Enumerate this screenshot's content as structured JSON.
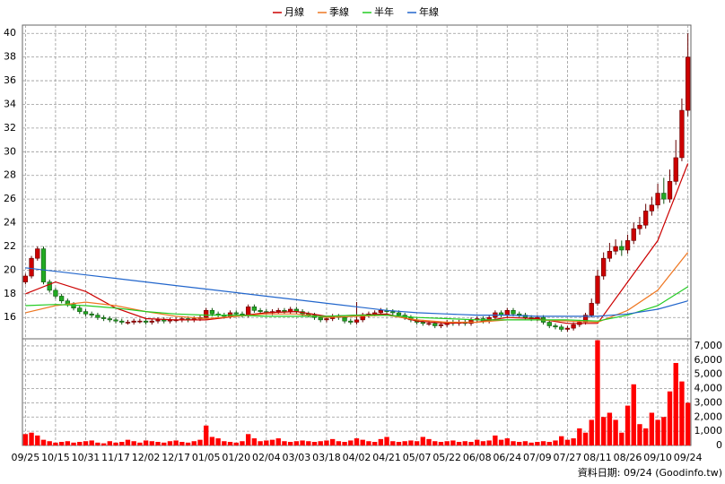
{
  "chart_data": [
    {
      "type": "candlestick",
      "categories": [
        "09/25",
        null,
        null,
        null,
        null,
        "10/15",
        null,
        null,
        null,
        null,
        "10/31",
        null,
        null,
        null,
        null,
        "11/17",
        null,
        null,
        null,
        null,
        "12/02",
        null,
        null,
        null,
        null,
        "12/17",
        null,
        null,
        null,
        null,
        "01/05",
        null,
        null,
        null,
        null,
        "01/20",
        null,
        null,
        null,
        null,
        "02/04",
        null,
        null,
        null,
        null,
        "03/03",
        null,
        null,
        null,
        null,
        "03/18",
        null,
        null,
        null,
        null,
        "04/02",
        null,
        null,
        null,
        null,
        "04/21",
        null,
        null,
        null,
        null,
        "05/07",
        null,
        null,
        null,
        null,
        "05/22",
        null,
        null,
        null,
        null,
        "06/08",
        null,
        null,
        null,
        null,
        "06/24",
        null,
        null,
        null,
        null,
        "07/09",
        null,
        null,
        null,
        null,
        "07/27",
        null,
        null,
        null,
        null,
        "08/11",
        null,
        null,
        null,
        null,
        "08/26",
        null,
        null,
        null,
        null,
        "09/10",
        null,
        null,
        null,
        null,
        "09/24"
      ],
      "open": [
        19.0,
        19.5,
        21,
        21.8,
        19,
        18.3,
        17.8,
        17.4,
        17.1,
        16.8,
        16.5,
        16.3,
        16.2,
        16.0,
        15.9,
        15.8,
        15.7,
        15.6,
        15.6,
        15.7,
        15.7,
        15.6,
        15.7,
        15.8,
        15.7,
        15.8,
        15.8,
        15.9,
        15.8,
        15.9,
        16.0,
        16.6,
        16.3,
        16.2,
        16.1,
        16.4,
        16.3,
        16.2,
        16.9,
        16.6,
        16.5,
        16.4,
        16.5,
        16.6,
        16.5,
        16.7,
        16.5,
        16.3,
        16.2,
        16.0,
        15.8,
        15.9,
        16.1,
        16.0,
        15.7,
        15.6,
        15.8,
        16.2,
        16.3,
        16.4,
        16.6,
        16.5,
        16.4,
        16.2,
        16.0,
        15.8,
        15.6,
        15.5,
        15.5,
        15.3,
        15.4,
        15.6,
        15.5,
        15.6,
        15.5,
        15.8,
        15.9,
        15.7,
        16.0,
        16.4,
        16.2,
        16.6,
        16.3,
        16.2,
        16.0,
        15.9,
        16.0,
        15.6,
        15.3,
        15.2,
        15.0,
        15.1,
        15.4,
        15.6,
        16.2,
        17.2,
        19.5,
        21.0,
        21.6,
        22.0,
        21.7,
        22.5,
        23.5,
        23.8,
        25.0,
        25.5,
        26.5,
        26.0,
        27.5,
        29.5,
        33.5
      ],
      "high": [
        19.7,
        21.2,
        22.0,
        22.0,
        19.2,
        18.5,
        18.0,
        17.6,
        17.3,
        17.0,
        16.7,
        16.5,
        16.4,
        16.2,
        16.1,
        16.0,
        15.9,
        15.8,
        15.9,
        15.9,
        15.9,
        15.9,
        16.0,
        16.0,
        16.0,
        16.0,
        16.1,
        16.1,
        16.1,
        16.2,
        16.8,
        16.8,
        16.5,
        16.4,
        16.6,
        16.6,
        16.5,
        17.1,
        17.1,
        16.8,
        16.7,
        16.7,
        16.8,
        16.8,
        16.9,
        16.9,
        16.7,
        16.5,
        16.4,
        16.2,
        16.1,
        16.3,
        16.3,
        16.2,
        15.9,
        17.3,
        16.4,
        16.5,
        16.6,
        16.8,
        16.8,
        16.7,
        16.6,
        16.4,
        16.2,
        16.0,
        15.8,
        15.7,
        15.7,
        15.6,
        15.8,
        15.8,
        15.8,
        15.8,
        16.0,
        16.1,
        16.1,
        16.2,
        16.6,
        16.6,
        16.8,
        16.8,
        16.5,
        16.4,
        16.2,
        16.2,
        16.2,
        15.8,
        15.5,
        15.4,
        15.3,
        15.6,
        15.8,
        16.4,
        17.6,
        20.0,
        21.5,
        22.3,
        22.6,
        22.5,
        23.0,
        24.0,
        24.5,
        25.6,
        26.2,
        27.3,
        27.8,
        28.5,
        31.0,
        34.5,
        40.0
      ],
      "low": [
        18.8,
        19.3,
        20.8,
        18.8,
        18.1,
        17.6,
        17.2,
        16.9,
        16.6,
        16.3,
        16.1,
        16.0,
        15.8,
        15.7,
        15.6,
        15.5,
        15.4,
        15.4,
        15.4,
        15.5,
        15.4,
        15.4,
        15.5,
        15.5,
        15.5,
        15.6,
        15.6,
        15.6,
        15.6,
        15.7,
        15.8,
        16.1,
        16.0,
        15.9,
        15.9,
        16.1,
        16.0,
        16.0,
        16.4,
        16.3,
        16.2,
        16.2,
        16.3,
        16.3,
        16.3,
        16.3,
        16.1,
        16.0,
        15.8,
        15.6,
        15.6,
        15.7,
        15.8,
        15.5,
        15.4,
        15.4,
        15.6,
        16.0,
        16.1,
        16.2,
        16.3,
        16.2,
        16.0,
        15.8,
        15.6,
        15.4,
        15.3,
        15.3,
        15.1,
        15.1,
        15.2,
        15.3,
        15.3,
        15.3,
        15.3,
        15.6,
        15.5,
        15.5,
        15.8,
        16.0,
        16.0,
        16.1,
        16.0,
        15.8,
        15.7,
        15.7,
        15.4,
        15.1,
        15.0,
        14.8,
        14.8,
        14.9,
        15.2,
        15.4,
        16.0,
        17.0,
        19.2,
        20.7,
        21.3,
        21.2,
        21.4,
        22.2,
        23.0,
        23.5,
        24.6,
        25.2,
        25.6,
        25.7,
        27.2,
        29.2,
        33.0
      ],
      "close": [
        19.5,
        21,
        21.8,
        19,
        18.3,
        17.8,
        17.4,
        17.1,
        16.8,
        16.5,
        16.3,
        16.2,
        16.0,
        15.9,
        15.8,
        15.7,
        15.6,
        15.6,
        15.7,
        15.7,
        15.6,
        15.7,
        15.8,
        15.7,
        15.8,
        15.8,
        15.9,
        15.8,
        15.9,
        16.0,
        16.6,
        16.3,
        16.2,
        16.1,
        16.4,
        16.3,
        16.2,
        16.9,
        16.6,
        16.5,
        16.4,
        16.5,
        16.6,
        16.5,
        16.7,
        16.5,
        16.3,
        16.2,
        16.0,
        15.8,
        15.9,
        16.1,
        16.0,
        15.7,
        15.6,
        15.8,
        16.2,
        16.3,
        16.4,
        16.6,
        16.5,
        16.4,
        16.2,
        16.0,
        15.8,
        15.6,
        15.5,
        15.5,
        15.3,
        15.4,
        15.6,
        15.5,
        15.6,
        15.5,
        15.8,
        15.9,
        15.7,
        16.0,
        16.4,
        16.2,
        16.6,
        16.3,
        16.2,
        16.0,
        15.9,
        16.0,
        15.6,
        15.3,
        15.2,
        15.0,
        15.1,
        15.4,
        15.6,
        16.2,
        17.2,
        19.5,
        21.0,
        21.6,
        22.0,
        21.7,
        22.5,
        23.5,
        23.8,
        25.0,
        25.5,
        26.5,
        26.0,
        27.5,
        29.5,
        33.5,
        38.0
      ],
      "up_color": "#cc0000",
      "down_color": "#22aa22",
      "series": [
        {
          "name": "月線",
          "color": "#cc0000",
          "x": [
            0,
            5,
            10,
            15,
            20,
            25,
            30,
            35,
            40,
            45,
            50,
            55,
            60,
            65,
            70,
            75,
            80,
            85,
            90,
            95,
            100,
            105,
            110
          ],
          "values": [
            18.0,
            19.0,
            18.2,
            16.8,
            15.9,
            15.8,
            15.8,
            16.1,
            16.4,
            16.5,
            16.1,
            16.2,
            16.3,
            15.7,
            15.5,
            15.6,
            16.0,
            15.9,
            15.5,
            15.5,
            19.0,
            22.5,
            29.0
          ]
        },
        {
          "name": "季線",
          "color": "#ee7722",
          "x": [
            0,
            5,
            10,
            15,
            20,
            25,
            30,
            35,
            40,
            45,
            50,
            55,
            60,
            65,
            70,
            75,
            80,
            85,
            90,
            95,
            100,
            105,
            110
          ],
          "values": [
            16.4,
            17.0,
            17.3,
            17.0,
            16.5,
            16.1,
            15.9,
            16.1,
            16.3,
            16.3,
            16.0,
            16.1,
            16.2,
            15.8,
            15.6,
            15.6,
            15.8,
            15.8,
            15.7,
            15.6,
            16.6,
            18.3,
            21.5
          ]
        },
        {
          "name": "半年",
          "color": "#22cc22",
          "x": [
            0,
            5,
            10,
            15,
            20,
            25,
            30,
            35,
            40,
            45,
            50,
            55,
            60,
            65,
            70,
            75,
            80,
            85,
            90,
            95,
            100,
            105,
            110
          ],
          "values": [
            17.0,
            17.1,
            17.0,
            16.8,
            16.5,
            16.3,
            16.2,
            16.2,
            16.1,
            16.1,
            16.1,
            16.2,
            16.2,
            16.0,
            15.9,
            15.8,
            15.8,
            15.8,
            15.8,
            15.7,
            16.2,
            17.0,
            18.6
          ]
        },
        {
          "name": "年線",
          "color": "#2266cc",
          "x": [
            0,
            5,
            10,
            15,
            20,
            25,
            30,
            35,
            40,
            45,
            50,
            55,
            60,
            65,
            70,
            75,
            80,
            85,
            90,
            95,
            100,
            105,
            110
          ],
          "values": [
            20.2,
            19.9,
            19.6,
            19.3,
            19.0,
            18.7,
            18.4,
            18.1,
            17.8,
            17.5,
            17.2,
            16.9,
            16.6,
            16.4,
            16.3,
            16.2,
            16.2,
            16.1,
            16.1,
            16.1,
            16.3,
            16.7,
            17.4
          ]
        }
      ],
      "ylim": [
        14.2,
        40.7
      ],
      "yticks": [
        16,
        18,
        20,
        22,
        24,
        26,
        28,
        30,
        32,
        34,
        36,
        38,
        40
      ],
      "grid": true,
      "legend": "top"
    },
    {
      "type": "bar",
      "values": [
        800,
        900,
        700,
        400,
        300,
        200,
        250,
        300,
        200,
        250,
        300,
        350,
        200,
        150,
        300,
        200,
        250,
        400,
        300,
        200,
        350,
        300,
        250,
        200,
        300,
        350,
        250,
        200,
        300,
        400,
        1400,
        600,
        500,
        300,
        250,
        200,
        300,
        800,
        500,
        300,
        350,
        400,
        500,
        300,
        250,
        300,
        350,
        300,
        250,
        300,
        350,
        450,
        300,
        250,
        350,
        500,
        400,
        300,
        250,
        450,
        600,
        300,
        250,
        300,
        350,
        300,
        600,
        450,
        300,
        250,
        300,
        350,
        250,
        300,
        250,
        400,
        300,
        350,
        700,
        400,
        500,
        300,
        250,
        300,
        200,
        250,
        300,
        250,
        350,
        650,
        400,
        500,
        1200,
        900,
        1800,
        7400,
        2000,
        2300,
        1800,
        900,
        2800,
        4300,
        1500,
        1200,
        2300,
        1800,
        2000,
        3800,
        5800,
        4500,
        3000
      ],
      "color": "#ff0000",
      "ylim": [
        0,
        7500
      ],
      "yticks": [
        0,
        {
          "value": 1000,
          "label": "1,000"
        },
        {
          "value": 2000,
          "label": "2,000"
        },
        {
          "value": 3000,
          "label": "3,000"
        },
        {
          "value": 4000,
          "label": "4,000"
        },
        {
          "value": 5000,
          "label": "5,000"
        },
        {
          "value": 6000,
          "label": "6,000"
        },
        {
          "value": 7000,
          "label": "7,000"
        }
      ],
      "grid": true
    }
  ],
  "source_note": "資料日期: 09/24 (Goodinfo.tw)"
}
